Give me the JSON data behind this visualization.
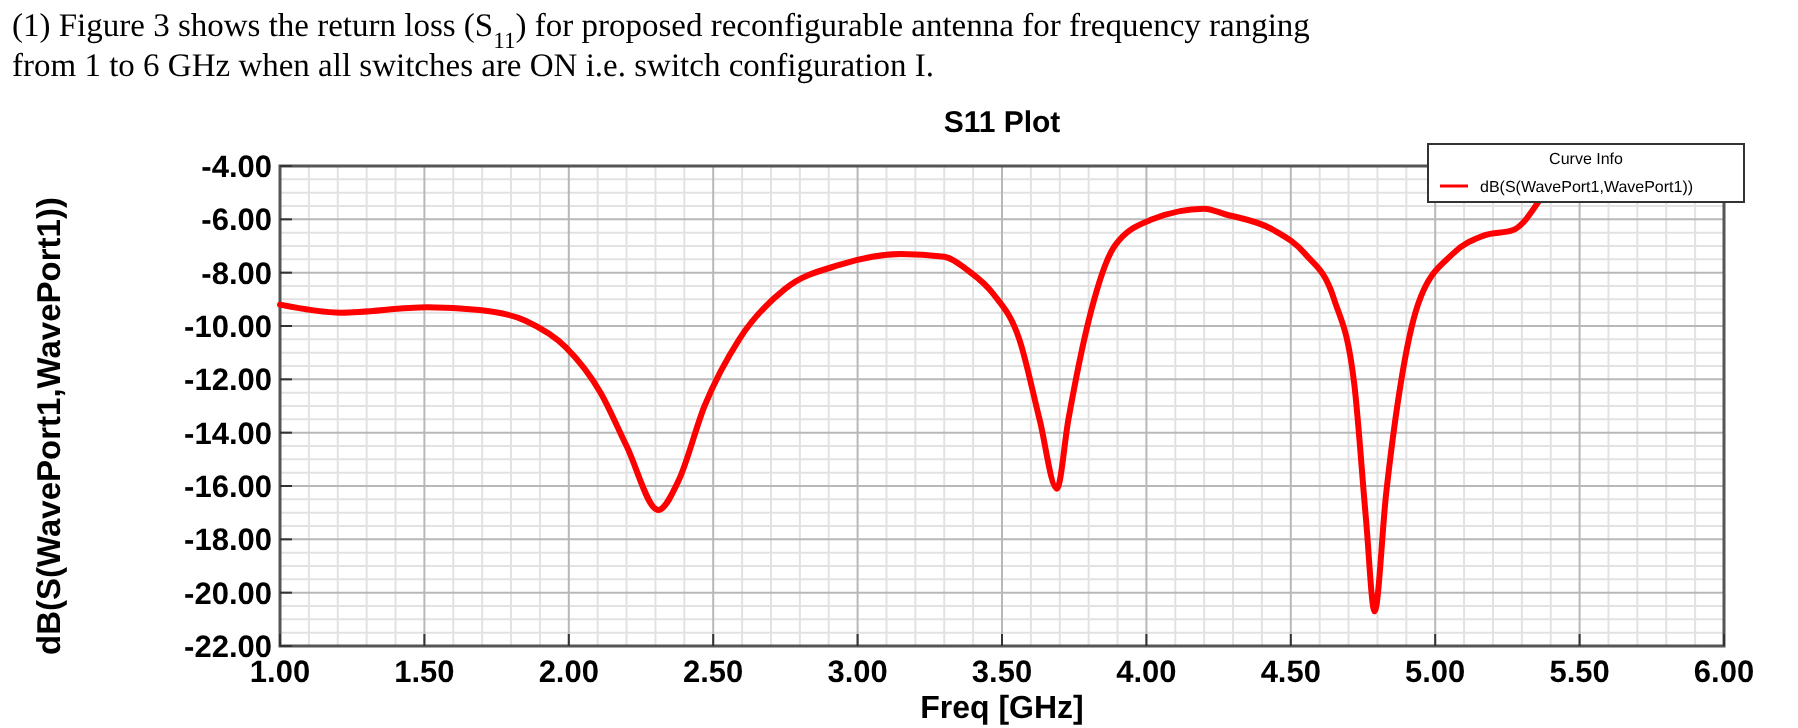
{
  "chart_data": {
    "type": "line",
    "title": "S11 Plot",
    "xlabel": "Freq [GHz]",
    "ylabel": "dB(S(WavePort1,WavePort1))",
    "legend_title": "Curve Info",
    "annotations": [
      "(1) Figure 3 shows the return loss (S$_{11}$) for proposed reconfigurable antenna for frequency ranging from 1 to 6 GHz when all switches are ON i.e. switch configuration I."
    ],
    "x": [
      1.0,
      1.21,
      1.51,
      1.69,
      1.85,
      1.99,
      2.11,
      2.2,
      2.31,
      2.38,
      2.47,
      2.59,
      2.75,
      2.94,
      3.15,
      3.3,
      3.38,
      3.47,
      3.56,
      3.63,
      3.69,
      3.73,
      3.8,
      3.89,
      4.02,
      4.2,
      4.27,
      4.44,
      4.55,
      4.65,
      4.72,
      4.76,
      4.79,
      4.83,
      4.88,
      4.94,
      5.06,
      5.17,
      5.27,
      5.36
    ],
    "series": [
      {
        "name": "dB(S(WavePort1,WavePort1))",
        "color": "#ff0000",
        "values": [
          -9.2,
          -9.5,
          -9.3,
          -9.4,
          -9.8,
          -10.8,
          -12.5,
          -14.5,
          -16.9,
          -15.8,
          -13.0,
          -10.5,
          -8.6,
          -7.7,
          -7.3,
          -7.4,
          -7.9,
          -8.8,
          -10.5,
          -13.5,
          -16.1,
          -13.5,
          -9.8,
          -7.0,
          -6.0,
          -5.6,
          -5.8,
          -6.4,
          -7.3,
          -9.0,
          -12.2,
          -17.2,
          -20.7,
          -16.3,
          -12.2,
          -9.2,
          -7.3,
          -6.6,
          -6.4,
          -5.3
        ]
      }
    ],
    "xlim": [
      1,
      6
    ],
    "ylim": [
      -22,
      -4
    ],
    "xticks": [
      {
        "value": 1,
        "label": "1.00"
      },
      {
        "value": 1.5,
        "label": "1.50"
      },
      {
        "value": 2,
        "label": "2.00"
      },
      {
        "value": 2.5,
        "label": "2.50"
      },
      {
        "value": 3,
        "label": "3.00"
      },
      {
        "value": 3.5,
        "label": "3.50"
      },
      {
        "value": 4,
        "label": "4.00"
      },
      {
        "value": 4.5,
        "label": "4.50"
      },
      {
        "value": 5,
        "label": "5.00"
      },
      {
        "value": 5.5,
        "label": "5.50"
      },
      {
        "value": 6,
        "label": "6.00"
      }
    ],
    "yticks": [
      {
        "value": -4,
        "label": "-4.00"
      },
      {
        "value": -6,
        "label": "-6.00"
      },
      {
        "value": -8,
        "label": "-8.00"
      },
      {
        "value": -10,
        "label": "-10.00"
      },
      {
        "value": -12,
        "label": "-12.00"
      },
      {
        "value": -14,
        "label": "-14.00"
      },
      {
        "value": -16,
        "label": "-16.00"
      },
      {
        "value": -18,
        "label": "-18.00"
      },
      {
        "value": -20,
        "label": "-20.00"
      },
      {
        "value": -22,
        "label": "-22.00"
      }
    ],
    "grid": true,
    "legend": "top right",
    "marker": "none",
    "line_style": "solid"
  }
}
